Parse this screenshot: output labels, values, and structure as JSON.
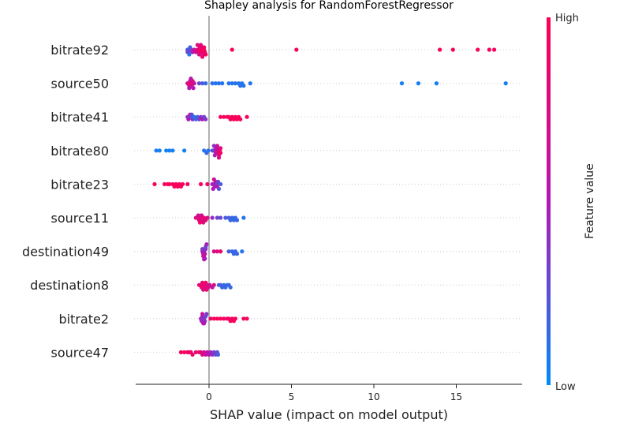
{
  "chart_data": {
    "type": "scatter",
    "title": "Shapley analysis for RandomForestRegressor",
    "xlabel": "SHAP value (impact on model output)",
    "xlim": [
      -4.5,
      19
    ],
    "xticks": [
      0,
      5,
      10,
      15
    ],
    "colorbar": {
      "label": "Feature value",
      "high": "High",
      "low": "Low",
      "low_color": "#008bfb",
      "high_color": "#ff0052"
    },
    "features": [
      {
        "name": "bitrate92",
        "points": [
          [
            -1.3,
            0.2
          ],
          [
            -1.25,
            0.2
          ],
          [
            -1.2,
            0.2
          ],
          [
            -1.15,
            0.2
          ],
          [
            -1.3,
            0.3
          ],
          [
            -1.1,
            0.3
          ],
          [
            -1.2,
            0.1
          ],
          [
            -1.0,
            0.5
          ],
          [
            -0.9,
            0.6
          ],
          [
            -0.8,
            0.7
          ],
          [
            -0.7,
            0.8
          ],
          [
            -0.6,
            0.9
          ],
          [
            -0.55,
            0.85
          ],
          [
            -0.5,
            0.95
          ],
          [
            -0.45,
            0.9
          ],
          [
            -0.4,
            0.9
          ],
          [
            -0.35,
            0.9
          ],
          [
            -0.3,
            0.95
          ],
          [
            -0.25,
            0.9
          ],
          [
            -0.6,
            0.7
          ],
          [
            -0.7,
            0.75
          ],
          [
            -0.5,
            0.8
          ],
          [
            -0.4,
            0.85
          ],
          [
            -0.3,
            0.9
          ],
          [
            -0.2,
            0.9
          ],
          [
            1.4,
            0.95
          ],
          [
            5.3,
            0.95
          ],
          [
            14.0,
            0.95
          ],
          [
            14.8,
            0.95
          ],
          [
            16.3,
            0.95
          ],
          [
            17.0,
            0.95
          ],
          [
            17.3,
            0.95
          ]
        ]
      },
      {
        "name": "source50",
        "points": [
          [
            -1.3,
            0.6
          ],
          [
            -1.25,
            0.7
          ],
          [
            -1.2,
            0.8
          ],
          [
            -1.15,
            0.6
          ],
          [
            -1.1,
            0.9
          ],
          [
            -1.05,
            0.7
          ],
          [
            -1.0,
            0.8
          ],
          [
            -0.95,
            0.5
          ],
          [
            -1.2,
            0.5
          ],
          [
            -1.1,
            0.55
          ],
          [
            -0.9,
            0.6
          ],
          [
            -0.6,
            0.3
          ],
          [
            -0.4,
            0.2
          ],
          [
            -0.2,
            0.15
          ],
          [
            0.2,
            0.1
          ],
          [
            0.4,
            0.1
          ],
          [
            0.6,
            0.1
          ],
          [
            0.8,
            0.1
          ],
          [
            1.2,
            0.1
          ],
          [
            1.4,
            0.1
          ],
          [
            1.6,
            0.1
          ],
          [
            1.8,
            0.1
          ],
          [
            1.9,
            0.1
          ],
          [
            2.0,
            0.1
          ],
          [
            2.1,
            0.1
          ],
          [
            2.5,
            0.1
          ],
          [
            11.7,
            0.05
          ],
          [
            12.7,
            0.05
          ],
          [
            13.8,
            0.05
          ],
          [
            18.0,
            0.05
          ]
        ]
      },
      {
        "name": "bitrate41",
        "points": [
          [
            -1.3,
            0.4
          ],
          [
            -1.2,
            0.3
          ],
          [
            -1.1,
            0.2
          ],
          [
            -1.0,
            0.35
          ],
          [
            -0.9,
            0.1
          ],
          [
            -1.25,
            0.5
          ],
          [
            -1.15,
            0.6
          ],
          [
            -1.05,
            0.25
          ],
          [
            -0.8,
            0.15
          ],
          [
            -0.7,
            0.2
          ],
          [
            -0.6,
            0.3
          ],
          [
            -0.5,
            0.4
          ],
          [
            -0.4,
            0.5
          ],
          [
            -0.3,
            0.3
          ],
          [
            -0.2,
            0.35
          ],
          [
            0.7,
            0.95
          ],
          [
            0.9,
            0.95
          ],
          [
            1.1,
            0.95
          ],
          [
            1.2,
            0.95
          ],
          [
            1.3,
            0.95
          ],
          [
            1.4,
            0.95
          ],
          [
            1.5,
            0.95
          ],
          [
            1.6,
            0.95
          ],
          [
            1.7,
            0.95
          ],
          [
            1.8,
            0.95
          ],
          [
            1.9,
            0.95
          ],
          [
            2.3,
            0.95
          ]
        ]
      },
      {
        "name": "bitrate80",
        "points": [
          [
            -3.2,
            0.05
          ],
          [
            -3.0,
            0.05
          ],
          [
            -2.6,
            0.05
          ],
          [
            -2.4,
            0.05
          ],
          [
            -2.2,
            0.05
          ],
          [
            -1.5,
            0.05
          ],
          [
            -0.3,
            0.1
          ],
          [
            -0.15,
            0.15
          ],
          [
            -0.05,
            0.12
          ],
          [
            0.2,
            0.2
          ],
          [
            0.3,
            0.3
          ],
          [
            0.4,
            0.5
          ],
          [
            0.45,
            0.6
          ],
          [
            0.5,
            0.7
          ],
          [
            0.55,
            0.8
          ],
          [
            0.6,
            0.85
          ],
          [
            0.65,
            0.9
          ],
          [
            0.7,
            0.92
          ],
          [
            0.5,
            0.65
          ],
          [
            0.4,
            0.55
          ],
          [
            0.35,
            0.45
          ],
          [
            0.3,
            0.4
          ],
          [
            0.6,
            0.75
          ],
          [
            0.7,
            0.8
          ]
        ]
      },
      {
        "name": "bitrate23",
        "points": [
          [
            -3.3,
            0.95
          ],
          [
            -2.7,
            0.95
          ],
          [
            -2.5,
            0.95
          ],
          [
            -2.4,
            0.95
          ],
          [
            -2.2,
            0.95
          ],
          [
            -2.1,
            0.95
          ],
          [
            -2.0,
            0.95
          ],
          [
            -1.9,
            0.95
          ],
          [
            -1.8,
            0.95
          ],
          [
            -1.7,
            0.95
          ],
          [
            -1.6,
            0.95
          ],
          [
            -1.3,
            0.9
          ],
          [
            -0.5,
            0.95
          ],
          [
            -0.1,
            0.9
          ],
          [
            0.2,
            0.4
          ],
          [
            0.3,
            0.5
          ],
          [
            0.35,
            0.45
          ],
          [
            0.4,
            0.6
          ],
          [
            0.45,
            0.35
          ],
          [
            0.5,
            0.55
          ],
          [
            0.55,
            0.3
          ],
          [
            0.6,
            0.25
          ],
          [
            0.7,
            0.2
          ],
          [
            0.25,
            0.5
          ],
          [
            0.3,
            0.65
          ]
        ]
      },
      {
        "name": "source11",
        "points": [
          [
            -0.8,
            0.75
          ],
          [
            -0.7,
            0.8
          ],
          [
            -0.6,
            0.85
          ],
          [
            -0.5,
            0.8
          ],
          [
            -0.4,
            0.75
          ],
          [
            -0.3,
            0.85
          ],
          [
            -0.65,
            0.7
          ],
          [
            -0.55,
            0.9
          ],
          [
            -0.45,
            0.7
          ],
          [
            -0.35,
            0.8
          ],
          [
            -0.2,
            0.8
          ],
          [
            -0.1,
            0.75
          ],
          [
            0.2,
            0.4
          ],
          [
            0.5,
            0.3
          ],
          [
            0.7,
            0.3
          ],
          [
            1.0,
            0.2
          ],
          [
            1.2,
            0.2
          ],
          [
            1.3,
            0.15
          ],
          [
            1.4,
            0.15
          ],
          [
            1.5,
            0.15
          ],
          [
            1.6,
            0.15
          ],
          [
            1.7,
            0.15
          ],
          [
            2.1,
            0.1
          ]
        ]
      },
      {
        "name": "destination49",
        "points": [
          [
            -0.4,
            0.5
          ],
          [
            -0.35,
            0.55
          ],
          [
            -0.3,
            0.45
          ],
          [
            -0.25,
            0.5
          ],
          [
            -0.2,
            0.4
          ],
          [
            -0.4,
            0.35
          ],
          [
            -0.3,
            0.6
          ],
          [
            -0.2,
            0.3
          ],
          [
            -0.35,
            0.65
          ],
          [
            -0.25,
            0.4
          ],
          [
            -0.15,
            0.45
          ],
          [
            -0.3,
            0.5
          ],
          [
            0.3,
            0.7
          ],
          [
            0.5,
            0.8
          ],
          [
            0.7,
            0.85
          ],
          [
            1.2,
            0.2
          ],
          [
            1.4,
            0.15
          ],
          [
            1.5,
            0.15
          ],
          [
            1.6,
            0.15
          ],
          [
            1.7,
            0.15
          ],
          [
            2.0,
            0.1
          ]
        ]
      },
      {
        "name": "destination8",
        "points": [
          [
            -0.6,
            0.8
          ],
          [
            -0.5,
            0.85
          ],
          [
            -0.45,
            0.9
          ],
          [
            -0.4,
            0.8
          ],
          [
            -0.35,
            0.75
          ],
          [
            -0.3,
            0.85
          ],
          [
            -0.25,
            0.8
          ],
          [
            -0.2,
            0.9
          ],
          [
            -0.15,
            0.85
          ],
          [
            -0.1,
            0.8
          ],
          [
            -0.05,
            0.75
          ],
          [
            0.05,
            0.7
          ],
          [
            0.2,
            0.6
          ],
          [
            0.3,
            0.7
          ],
          [
            0.6,
            0.2
          ],
          [
            0.7,
            0.2
          ],
          [
            0.8,
            0.15
          ],
          [
            0.9,
            0.15
          ],
          [
            1.0,
            0.15
          ],
          [
            1.1,
            0.15
          ],
          [
            1.2,
            0.15
          ],
          [
            1.3,
            0.15
          ]
        ]
      },
      {
        "name": "bitrate2",
        "points": [
          [
            -0.5,
            0.4
          ],
          [
            -0.45,
            0.45
          ],
          [
            -0.4,
            0.5
          ],
          [
            -0.35,
            0.55
          ],
          [
            -0.3,
            0.35
          ],
          [
            -0.25,
            0.4
          ],
          [
            -0.2,
            0.3
          ],
          [
            -0.4,
            0.6
          ],
          [
            -0.3,
            0.5
          ],
          [
            -0.15,
            0.35
          ],
          [
            0.1,
            0.9
          ],
          [
            0.3,
            0.95
          ],
          [
            0.5,
            0.95
          ],
          [
            0.7,
            0.95
          ],
          [
            0.9,
            0.95
          ],
          [
            1.1,
            0.9
          ],
          [
            1.2,
            0.9
          ],
          [
            1.3,
            0.95
          ],
          [
            1.4,
            0.95
          ],
          [
            1.5,
            0.95
          ],
          [
            1.6,
            0.9
          ],
          [
            2.1,
            0.95
          ],
          [
            2.3,
            0.95
          ]
        ]
      },
      {
        "name": "source47",
        "points": [
          [
            -1.7,
            0.95
          ],
          [
            -1.5,
            0.95
          ],
          [
            -1.3,
            0.9
          ],
          [
            -1.2,
            0.95
          ],
          [
            -1.1,
            0.9
          ],
          [
            -1.0,
            0.85
          ],
          [
            -0.8,
            0.85
          ],
          [
            -0.6,
            0.8
          ],
          [
            -0.5,
            0.85
          ],
          [
            -0.4,
            0.75
          ],
          [
            -0.3,
            0.7
          ],
          [
            -0.2,
            0.6
          ],
          [
            -0.1,
            0.55
          ],
          [
            0.0,
            0.5
          ],
          [
            0.1,
            0.45
          ],
          [
            0.2,
            0.4
          ],
          [
            0.3,
            0.35
          ],
          [
            0.4,
            0.3
          ],
          [
            0.5,
            0.25
          ],
          [
            0.55,
            0.2
          ]
        ]
      }
    ]
  }
}
